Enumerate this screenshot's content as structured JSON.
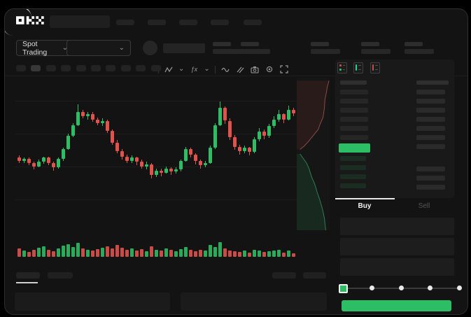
{
  "app": {
    "name": "OKX"
  },
  "colors": {
    "green": "#2dbd64",
    "red": "#e0534d",
    "bid_row_tint": "rgba(45,189,100,0.13)",
    "depth_ask_fill": "rgba(224,83,77,0.10)",
    "depth_ask_line": "#8a4a46",
    "depth_bid_fill": "rgba(45,189,100,0.12)",
    "depth_bid_line": "#2e7d54",
    "window_bg": "#131313"
  },
  "glyphs": {
    "chevron_down": "⌄",
    "indicators": "ƒx"
  },
  "header": {
    "nav_pill_count": 5
  },
  "market_bar": {
    "market_selector": {
      "label": "Spot Trading"
    },
    "pair_selector": {},
    "stat_placeholder_count": 5
  },
  "chart_toolbar": {
    "interval_pill_count": 10,
    "active_interval_index": 1,
    "icons": [
      "candle-style-icon",
      "chevron-down-icon",
      "indicators-icon",
      "chevron-down-icon",
      "line-style-icon",
      "draw-icon",
      "camera-icon",
      "settings-icon",
      "fullscreen-icon"
    ]
  },
  "chart_data": {
    "type": "candlestick",
    "price_scale": [
      0,
      100
    ],
    "grid": "horizontal-faint",
    "candles": [
      [
        36,
        33,
        38,
        31
      ],
      [
        33,
        35,
        36,
        31
      ],
      [
        35,
        31,
        36,
        29
      ],
      [
        31,
        28,
        32,
        25
      ],
      [
        28,
        32,
        34,
        27
      ],
      [
        32,
        36,
        37,
        30
      ],
      [
        36,
        31,
        37,
        29
      ],
      [
        31,
        27,
        32,
        24
      ],
      [
        27,
        35,
        36,
        26
      ],
      [
        35,
        44,
        45,
        33
      ],
      [
        44,
        56,
        58,
        43
      ],
      [
        56,
        66,
        68,
        55
      ],
      [
        66,
        78,
        85,
        65
      ],
      [
        78,
        74,
        80,
        72
      ],
      [
        74,
        76,
        78,
        71
      ],
      [
        76,
        71,
        78,
        69
      ],
      [
        71,
        68,
        73,
        66
      ],
      [
        68,
        70,
        72,
        65
      ],
      [
        70,
        61,
        71,
        59
      ],
      [
        61,
        50,
        62,
        48
      ],
      [
        50,
        42,
        52,
        40
      ],
      [
        42,
        37,
        44,
        34
      ],
      [
        37,
        33,
        39,
        31
      ],
      [
        33,
        36,
        38,
        31
      ],
      [
        36,
        32,
        37,
        29
      ],
      [
        32,
        28,
        34,
        26
      ],
      [
        28,
        30,
        32,
        25
      ],
      [
        30,
        20,
        31,
        17
      ],
      [
        20,
        24,
        26,
        18
      ],
      [
        24,
        22,
        26,
        19
      ],
      [
        22,
        26,
        28,
        21
      ],
      [
        26,
        23,
        27,
        20
      ],
      [
        23,
        25,
        27,
        21
      ],
      [
        25,
        33,
        34,
        23
      ],
      [
        33,
        44,
        46,
        32
      ],
      [
        44,
        39,
        45,
        36
      ],
      [
        39,
        33,
        40,
        30
      ],
      [
        33,
        29,
        34,
        26
      ],
      [
        29,
        31,
        33,
        27
      ],
      [
        31,
        45,
        47,
        30
      ],
      [
        45,
        66,
        68,
        44
      ],
      [
        66,
        82,
        88,
        65
      ],
      [
        82,
        70,
        83,
        67
      ],
      [
        70,
        55,
        72,
        52
      ],
      [
        55,
        46,
        57,
        43
      ],
      [
        46,
        42,
        48,
        39
      ],
      [
        42,
        45,
        47,
        40
      ],
      [
        45,
        41,
        46,
        38
      ],
      [
        41,
        53,
        55,
        40
      ],
      [
        53,
        60,
        63,
        51
      ],
      [
        60,
        56,
        62,
        53
      ],
      [
        56,
        65,
        67,
        54
      ],
      [
        65,
        71,
        74,
        63
      ],
      [
        71,
        76,
        80,
        69
      ],
      [
        76,
        71,
        77,
        68
      ],
      [
        71,
        80,
        84,
        70
      ],
      [
        80,
        77,
        82,
        74
      ]
    ],
    "volumes": [
      12,
      9,
      7,
      10,
      13,
      15,
      10,
      8,
      12,
      16,
      18,
      14,
      20,
      12,
      10,
      9,
      11,
      13,
      15,
      12,
      17,
      13,
      10,
      12,
      9,
      11,
      8,
      15,
      10,
      9,
      12,
      10,
      8,
      11,
      14,
      10,
      8,
      10,
      9,
      17,
      14,
      21,
      12,
      9,
      8,
      7,
      9,
      6,
      10,
      9,
      7,
      8,
      9,
      10,
      6,
      9,
      5
    ],
    "depth": {
      "asks": [
        [
          0.98,
          0.02
        ],
        [
          0.93,
          0.06
        ],
        [
          0.9,
          0.1
        ],
        [
          0.86,
          0.14
        ],
        [
          0.84,
          0.2
        ],
        [
          0.8,
          0.26
        ],
        [
          0.72,
          0.3
        ],
        [
          0.65,
          0.34
        ],
        [
          0.5,
          0.38
        ],
        [
          0.35,
          0.42
        ],
        [
          0.22,
          0.45
        ],
        [
          0.1,
          0.47
        ]
      ],
      "bids": [
        [
          0.1,
          0.5
        ],
        [
          0.2,
          0.53
        ],
        [
          0.3,
          0.56
        ],
        [
          0.38,
          0.6
        ],
        [
          0.45,
          0.65
        ],
        [
          0.55,
          0.7
        ],
        [
          0.62,
          0.75
        ],
        [
          0.7,
          0.8
        ],
        [
          0.78,
          0.86
        ],
        [
          0.84,
          0.92
        ],
        [
          0.88,
          1.0
        ]
      ]
    }
  },
  "orderbook": {
    "view_modes": [
      "book-all-icon",
      "book-bids-icon",
      "book-asks-icon"
    ],
    "ask_row_count": 6,
    "bid_row_count": 4,
    "right_top_row_count": 7,
    "right_bottom_row_count": 3,
    "last_price_row": {
      "highlighted": true,
      "direction": "up"
    }
  },
  "trade_panel": {
    "tabs": {
      "buy": "Buy",
      "sell": "Sell"
    },
    "active_tab": "buy",
    "field_count": 3,
    "slider": {
      "stop_count": 5,
      "active_stop": 0
    }
  },
  "bottom_bar": {
    "left_tab_count": 2,
    "active_left_tab": 0,
    "right_pill_count": 2,
    "panel_count": 2
  }
}
